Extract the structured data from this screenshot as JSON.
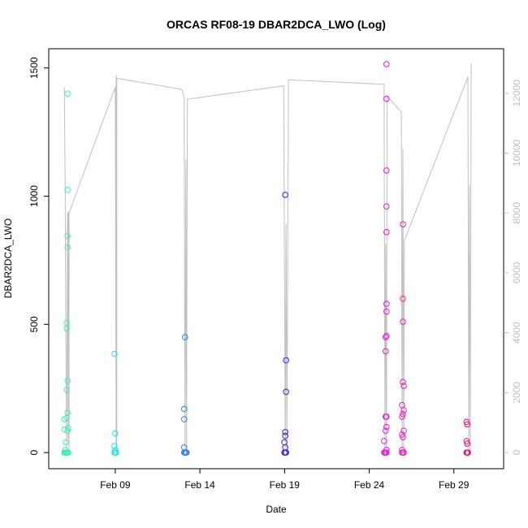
{
  "chart_data": {
    "type": "scatter",
    "title": "ORCAS RF08-19 DBAR2DCA_LWO (Log)",
    "xlabel": "Date",
    "ylabel": "DBAR2DCA_LWO",
    "xlim": [
      5.07,
      31.94
    ],
    "xticks": [
      {
        "value": 9,
        "label": "Feb 09"
      },
      {
        "value": 14,
        "label": "Feb 14"
      },
      {
        "value": 19,
        "label": "Feb 19"
      },
      {
        "value": 24,
        "label": "Feb 24"
      },
      {
        "value": 29,
        "label": "Feb 29"
      }
    ],
    "ylim": [
      -63,
      1575
    ],
    "yticks": [
      0,
      500,
      1000,
      1500
    ],
    "y2lim": [
      -543,
      13487
    ],
    "y2ticks": [
      0,
      2000,
      4000,
      6000,
      8000,
      10000,
      12000
    ],
    "y2color": "#c0c0c0",
    "series": [
      {
        "type": "line",
        "axis": "y2",
        "color": "#c0c0c0",
        "x": [
          5.99,
          6.04,
          6.08,
          6.13,
          6.18,
          6.22,
          6.22,
          6.27,
          6.27,
          9.0,
          9.05,
          9.05,
          9.09,
          9.09,
          9.09,
          12.94,
          13.07,
          13.12,
          13.17,
          13.21,
          13.26,
          18.95,
          19.04,
          19.09,
          19.14,
          19.23,
          24.88,
          24.93,
          24.97,
          25.02,
          25.06,
          25.9,
          25.94,
          25.99,
          26.04,
          26.08,
          29.83,
          29.88,
          29.92,
          29.97,
          30.02
        ],
        "values": [
          12200,
          9000,
          3700,
          0,
          8000,
          450,
          8050,
          0,
          8000,
          12200,
          0,
          12600,
          8800,
          0,
          12500,
          12130,
          11850,
          0,
          9770,
          0,
          11800,
          12250,
          0,
          7650,
          0,
          12450,
          12300,
          0,
          6970,
          0,
          11900,
          11370,
          0,
          10150,
          0,
          7080,
          12550,
          0,
          8930,
          0,
          13000
        ]
      },
      {
        "color": "#3ff0b4",
        "x": [
          6.18,
          6.18,
          6.18,
          6.18,
          6.13,
          6.13,
          6.18,
          6.13,
          6.18,
          6.13,
          5.99,
          6.22,
          5.99,
          6.18,
          6.08,
          6.04,
          5.99,
          6.04,
          6.08,
          6.13,
          6.18,
          6.22
        ],
        "values": [
          1400,
          1025,
          845,
          800,
          505,
          485,
          280,
          245,
          155,
          135,
          130,
          95,
          90,
          85,
          40,
          10,
          0,
          0,
          0,
          0,
          0,
          0
        ]
      },
      {
        "color": "#22e6e6",
        "x": [
          8.95,
          9.0,
          8.95,
          9.0,
          8.95,
          9.0,
          9.05
        ],
        "values": [
          385,
          75,
          25,
          10,
          0,
          0,
          0
        ]
      },
      {
        "color": "#3080f0",
        "x": [
          13.12,
          13.07,
          13.07,
          13.07,
          13.07,
          13.12,
          13.17,
          13.21
        ],
        "values": [
          450,
          170,
          130,
          20,
          0,
          0,
          0,
          0
        ]
      },
      {
        "color": "#4020e0",
        "x": [
          19.04,
          19.09,
          19.09,
          19.04,
          19.04,
          18.99,
          19.04,
          18.99,
          19.04,
          19.09
        ],
        "values": [
          1005,
          360,
          237,
          80,
          65,
          40,
          20,
          0,
          0,
          0
        ]
      },
      {
        "color": "#e020e0",
        "x": [
          25.02,
          25.02,
          25.02,
          25.02,
          25.02,
          25.02,
          25.02,
          25.02,
          24.97,
          24.97,
          25.02,
          24.97,
          25.02,
          24.97,
          24.88,
          25.02,
          24.88,
          24.93,
          24.97,
          25.02
        ],
        "values": [
          1515,
          1380,
          1100,
          960,
          860,
          580,
          550,
          455,
          450,
          395,
          140,
          140,
          100,
          85,
          45,
          10,
          0,
          0,
          0,
          0
        ]
      },
      {
        "color": "#f020c0",
        "x": [
          25.99,
          25.99,
          25.99,
          25.99,
          26.04,
          25.94,
          26.04,
          25.99,
          25.94,
          26.04,
          25.94,
          25.99,
          25.94,
          25.94,
          25.99,
          26.04
        ],
        "values": [
          890,
          600,
          510,
          275,
          260,
          185,
          165,
          150,
          140,
          85,
          70,
          60,
          10,
          0,
          0,
          0
        ]
      },
      {
        "color": "#ff0080",
        "x": [
          29.75,
          29.79,
          29.75,
          29.79,
          29.75,
          29.79,
          29.83
        ],
        "values": [
          120,
          110,
          45,
          35,
          0,
          0,
          0
        ]
      }
    ]
  }
}
